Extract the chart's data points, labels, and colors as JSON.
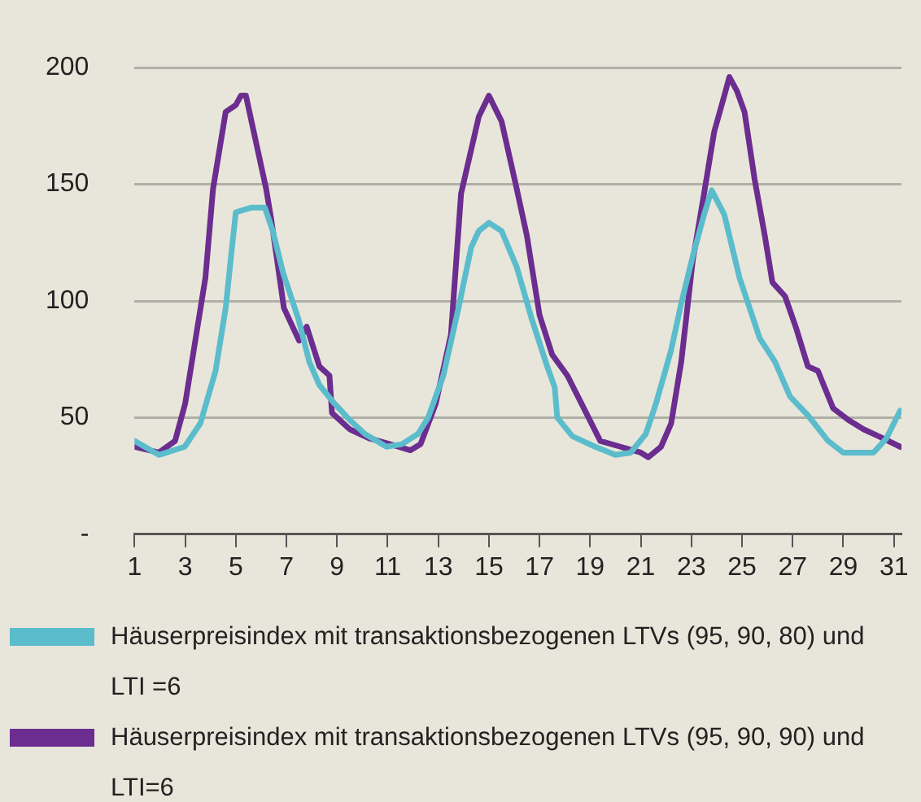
{
  "chart_data": {
    "type": "line",
    "xlim": [
      1,
      31.3
    ],
    "xticks": [
      1,
      3,
      5,
      7,
      9,
      11,
      13,
      15,
      17,
      19,
      21,
      23,
      25,
      27,
      29,
      31
    ],
    "ylim": [
      0,
      200
    ],
    "yticks": [
      {
        "value": 0,
        "label": "-"
      },
      50,
      100,
      150,
      200
    ],
    "grid": "y",
    "legend": "bottom",
    "marker": "none",
    "line_style": "solid",
    "series": [
      {
        "name": "Häuserpreisindex mit transaktionsbezogenen LTVs (95, 90, 80) und LTI =6",
        "color": "#5bbccc",
        "x": [
          1,
          1.96,
          2.98,
          3.6,
          4.2,
          4.6,
          4.85,
          5.0,
          5.6,
          6.15,
          6.46,
          6.87,
          7.48,
          7.9,
          8.3,
          8.9,
          9.5,
          10.1,
          10.95,
          11.56,
          12.2,
          12.6,
          13.2,
          13.8,
          14.3,
          14.6,
          15,
          15.5,
          16.1,
          16.7,
          17.3,
          17.6,
          17.7,
          18.3,
          19.2,
          20.0,
          20.6,
          21.2,
          21.6,
          22.2,
          22.6,
          23.05,
          23.5,
          23.8,
          24.3,
          24.9,
          25.3,
          25.7,
          26.3,
          26.9,
          27.6,
          28.4,
          29.0,
          30.2,
          30.7,
          31.25
        ],
        "values": [
          40,
          34,
          37.5,
          47.5,
          70,
          97,
          123,
          138,
          140,
          140,
          130,
          112,
          92,
          74,
          64,
          56,
          49,
          43,
          37.5,
          38.6,
          43,
          50,
          68,
          97,
          123,
          130,
          133.5,
          130,
          114.5,
          92,
          72,
          63,
          50,
          42,
          37.5,
          34,
          35,
          43,
          56,
          79,
          99,
          119,
          137,
          147.5,
          137,
          110,
          97,
          84,
          74,
          59,
          51,
          40,
          35,
          35,
          41,
          53
        ]
      },
      {
        "name": "Häuserpreisindex mit transaktionsbezogenen LTVs (95, 90, 90) und LTI=6",
        "color": "#6b2d8f",
        "x": [
          1,
          1.96,
          2.6,
          3.0,
          3.4,
          3.8,
          4.1,
          4.6,
          5.0,
          5.2,
          5.4,
          5.8,
          6.2,
          6.4,
          6.9,
          7.5,
          7.8,
          8.3,
          8.7,
          8.8,
          9.5,
          10.3,
          11.1,
          11.9,
          12.3,
          12.9,
          13.5,
          13.9,
          14.6,
          15,
          15.5,
          16.1,
          16.5,
          17.0,
          17.5,
          18.1,
          18.75,
          19.4,
          20.2,
          21.0,
          21.3,
          21.8,
          22.2,
          22.6,
          23.05,
          23.5,
          23.9,
          24.3,
          24.5,
          24.8,
          25.1,
          25.5,
          25.9,
          26.2,
          26.7,
          27.15,
          27.6,
          28.0,
          28.6,
          29.2,
          29.8,
          30.4,
          31.25
        ],
        "values": [
          37.5,
          35,
          40,
          56,
          83,
          110,
          148,
          181,
          184,
          188,
          188,
          168,
          148,
          135,
          97,
          83,
          89,
          72,
          68,
          52,
          45,
          41,
          38.6,
          36,
          38.6,
          56,
          85.5,
          146,
          179,
          188,
          177,
          148,
          128,
          94,
          77,
          68,
          54,
          40,
          37.5,
          35,
          33,
          37.5,
          47.5,
          74,
          117,
          146,
          172.5,
          188,
          196,
          190,
          181,
          152,
          128,
          108,
          102,
          88,
          72,
          70,
          54,
          49,
          45,
          42,
          37.5
        ]
      }
    ]
  }
}
